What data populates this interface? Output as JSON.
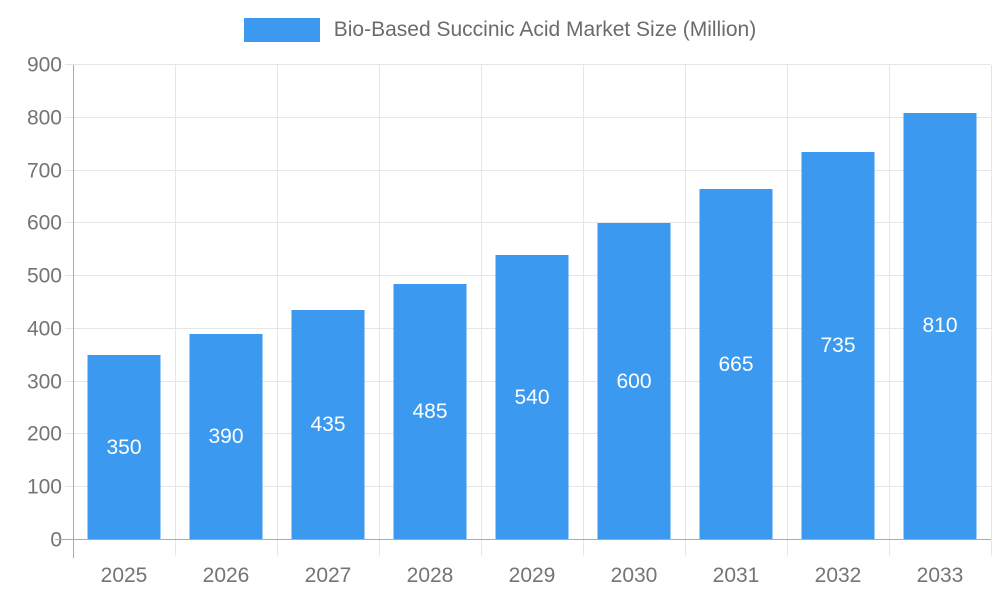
{
  "legend": {
    "label": "Bio-Based Succinic Acid Market Size (Million)"
  },
  "chart_data": {
    "type": "bar",
    "title": "Bio-Based Succinic Acid Market Size (Million)",
    "categories": [
      "2025",
      "2026",
      "2027",
      "2028",
      "2029",
      "2030",
      "2031",
      "2032",
      "2033"
    ],
    "values": [
      350,
      390,
      435,
      485,
      540,
      600,
      665,
      735,
      810
    ],
    "xlabel": "",
    "ylabel": "",
    "ylim": [
      0,
      900
    ],
    "yticks": [
      0,
      100,
      200,
      300,
      400,
      500,
      600,
      700,
      800,
      900
    ],
    "grid": true,
    "legend_position": "top-center",
    "colors": {
      "bar": "#3b9af0",
      "value_label": "#ffffff",
      "axis_text": "#747474",
      "legend_text": "#6b6b6b",
      "gridline": "#e6e6e6",
      "axis_line": "#aaaaaa",
      "background": "#ffffff"
    }
  }
}
